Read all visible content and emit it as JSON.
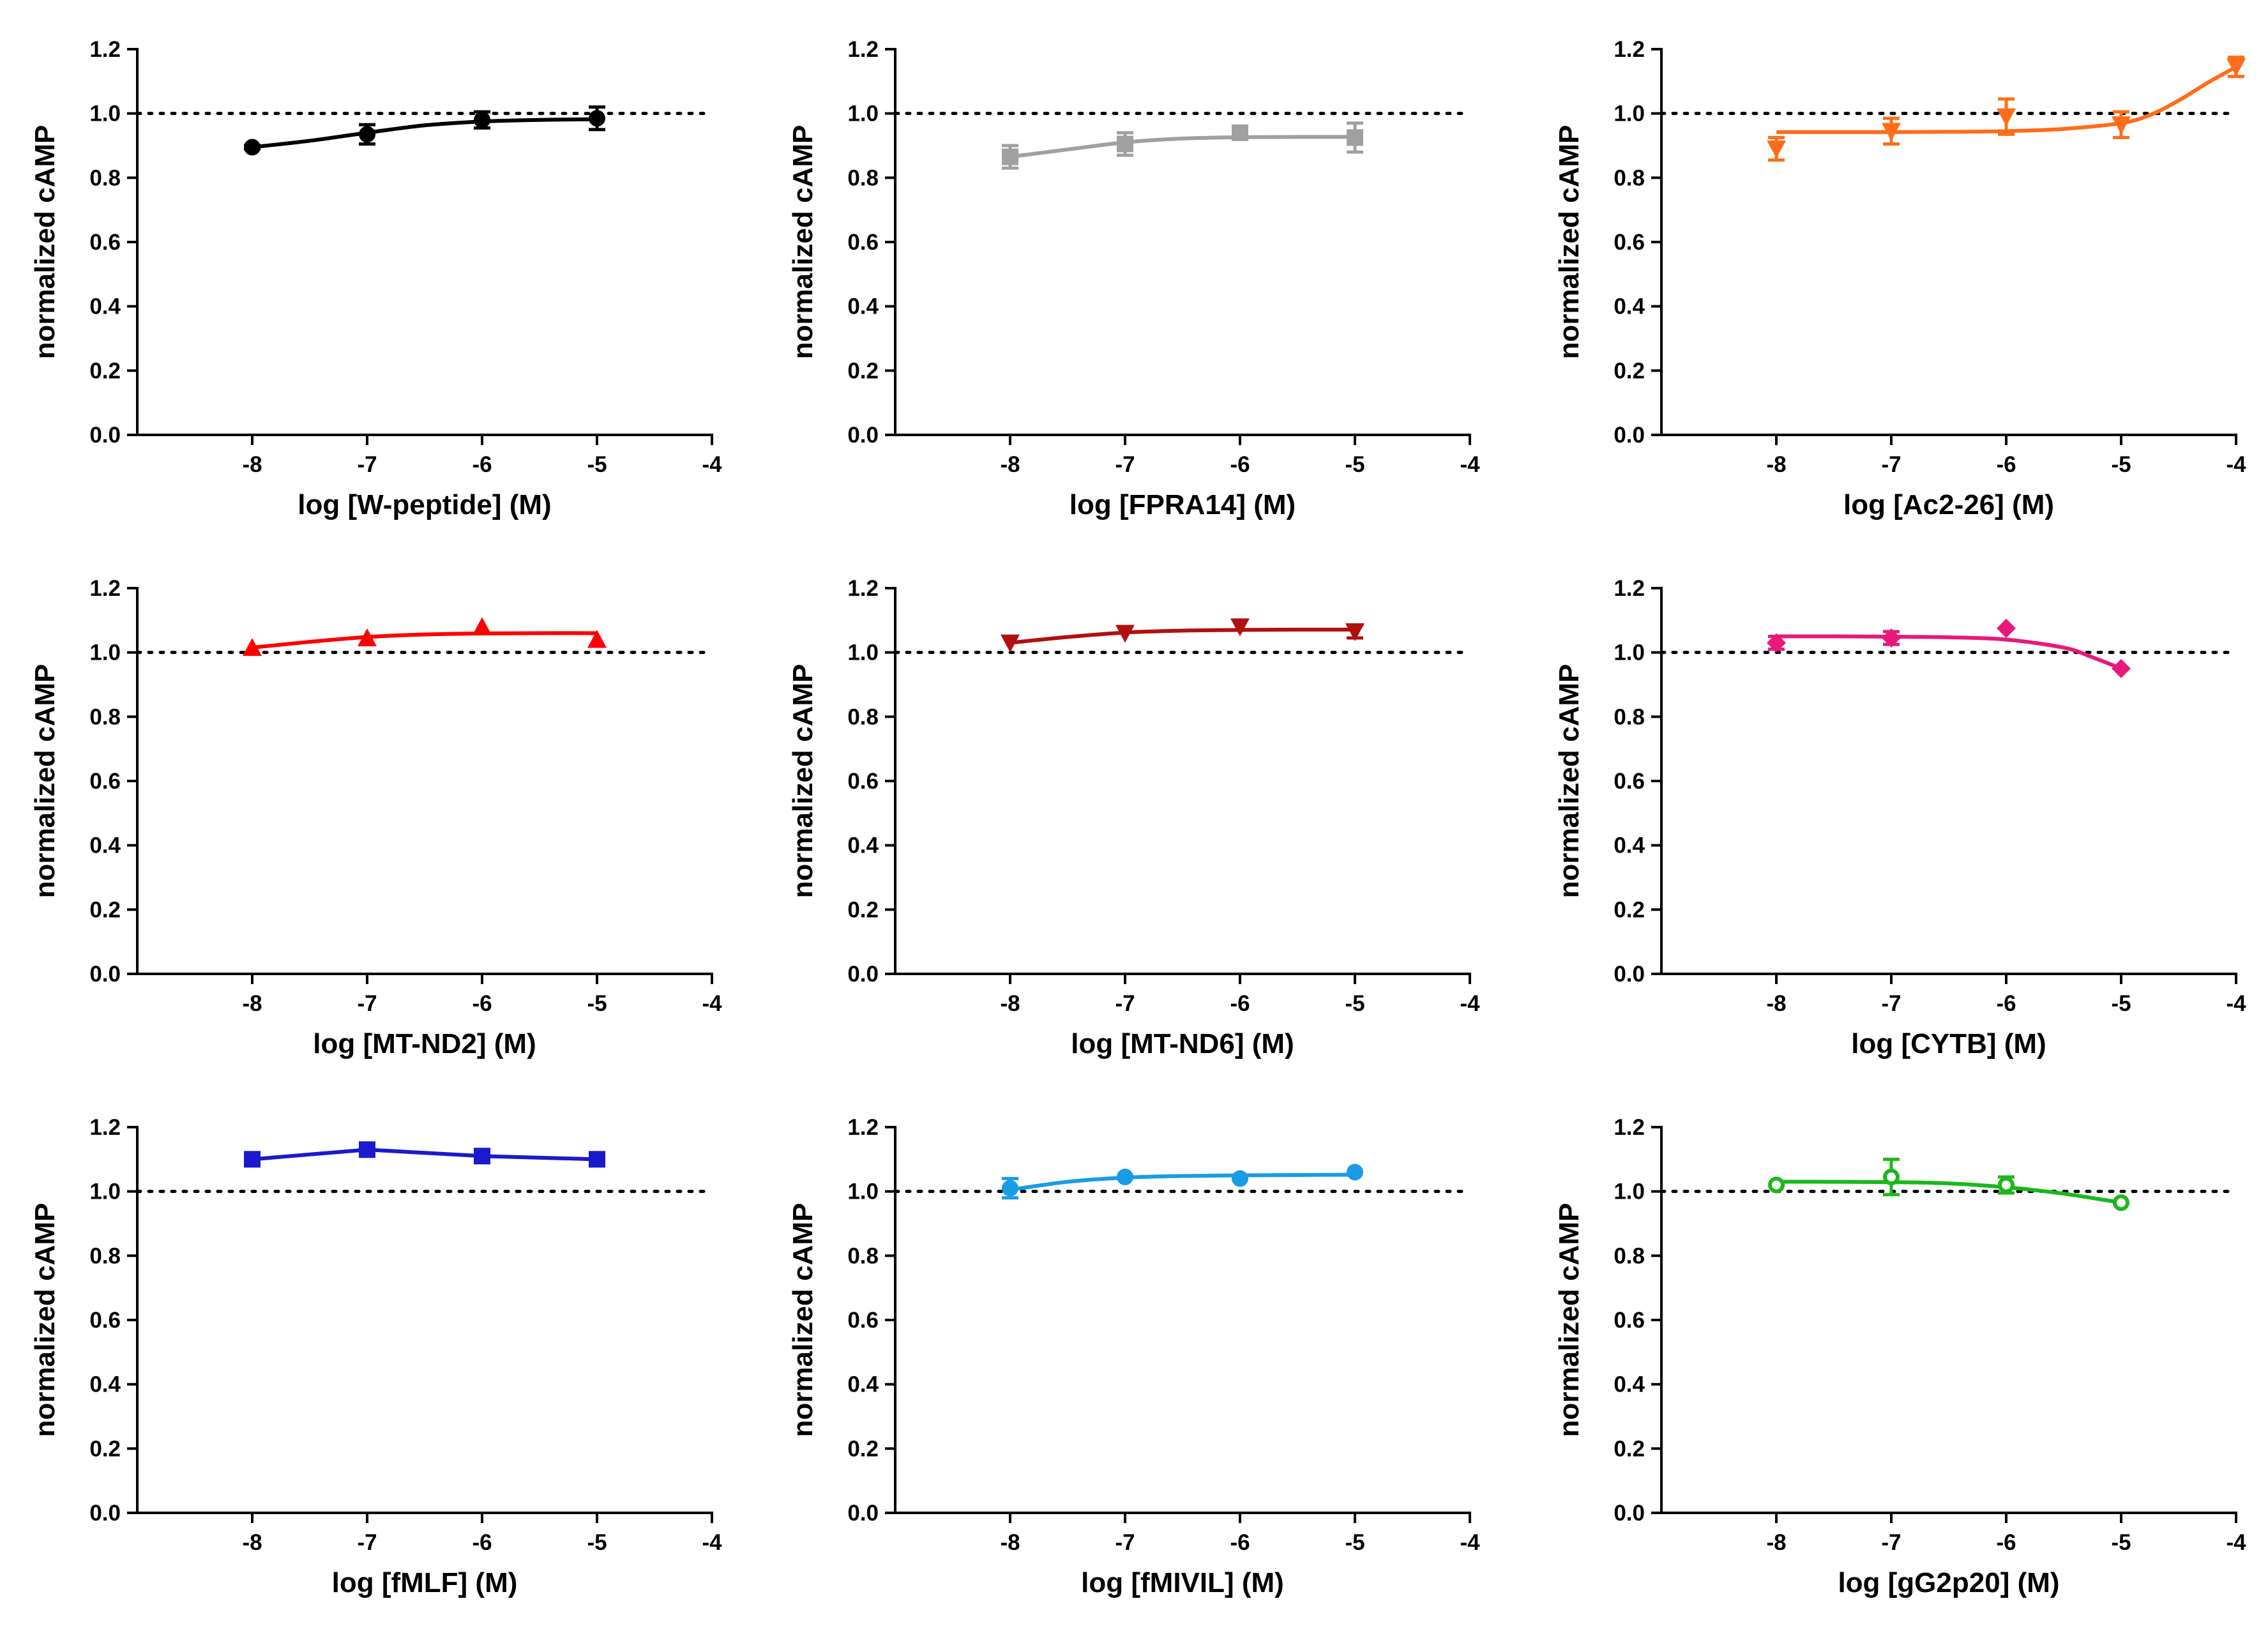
{
  "chart_data": [
    {
      "type": "scatter",
      "title": "",
      "xlabel": "log [W-peptide] (M)",
      "ylabel": "normalized cAMP",
      "xlim": [
        -9,
        -4
      ],
      "ylim": [
        0,
        1.2
      ],
      "xticks": [
        -8,
        -7,
        -6,
        -5,
        -4
      ],
      "yticks": [
        0.0,
        0.2,
        0.4,
        0.6,
        0.8,
        1.0,
        1.2
      ],
      "reference_line": 1.0,
      "marker": "circle",
      "color": "#000000",
      "fit": "sigmoidal",
      "x": [
        -8,
        -7,
        -6,
        -5
      ],
      "y": [
        0.895,
        0.935,
        0.98,
        0.985
      ],
      "error": [
        0.005,
        0.03,
        0.025,
        0.035
      ],
      "curve": [
        [
          -8,
          0.895
        ],
        [
          -7.5,
          0.915
        ],
        [
          -7,
          0.94
        ],
        [
          -6.5,
          0.963
        ],
        [
          -6,
          0.975
        ],
        [
          -5.5,
          0.98
        ],
        [
          -5,
          0.982
        ]
      ]
    },
    {
      "type": "scatter",
      "title": "",
      "xlabel": "log [FPRA14] (M)",
      "ylabel": "normalized cAMP",
      "xlim": [
        -9,
        -4
      ],
      "ylim": [
        0,
        1.2
      ],
      "xticks": [
        -8,
        -7,
        -6,
        -5,
        -4
      ],
      "yticks": [
        0.0,
        0.2,
        0.4,
        0.6,
        0.8,
        1.0,
        1.2
      ],
      "reference_line": 1.0,
      "marker": "square",
      "color": "#a0a0a0",
      "fit": "sigmoidal",
      "x": [
        -8,
        -7,
        -6,
        -5
      ],
      "y": [
        0.865,
        0.905,
        0.94,
        0.925
      ],
      "error": [
        0.035,
        0.035,
        0.01,
        0.045
      ],
      "curve": [
        [
          -8,
          0.865
        ],
        [
          -7.5,
          0.888
        ],
        [
          -7,
          0.91
        ],
        [
          -6.5,
          0.922
        ],
        [
          -6,
          0.926
        ],
        [
          -5.5,
          0.927
        ],
        [
          -5,
          0.927
        ]
      ]
    },
    {
      "type": "scatter",
      "title": "",
      "xlabel": "log [Ac2-26] (M)",
      "ylabel": "normalized cAMP",
      "xlim": [
        -9,
        -4
      ],
      "ylim": [
        0,
        1.2
      ],
      "xticks": [
        -8,
        -7,
        -6,
        -5,
        -4
      ],
      "yticks": [
        0.0,
        0.2,
        0.4,
        0.6,
        0.8,
        1.0,
        1.2
      ],
      "reference_line": 1.0,
      "marker": "triangle-down",
      "color": "#ff6d1a",
      "fit": "sigmoidal",
      "x": [
        -8,
        -7,
        -6,
        -5,
        -4
      ],
      "y": [
        0.89,
        0.945,
        0.99,
        0.965,
        1.145
      ],
      "error": [
        0.035,
        0.04,
        0.055,
        0.04,
        0.03
      ],
      "curve": [
        [
          -8,
          0.942
        ],
        [
          -7.5,
          0.942
        ],
        [
          -7,
          0.942
        ],
        [
          -6.5,
          0.943
        ],
        [
          -6,
          0.945
        ],
        [
          -5.5,
          0.952
        ],
        [
          -5,
          0.97
        ],
        [
          -4.75,
          0.995
        ],
        [
          -4.5,
          1.04
        ],
        [
          -4.25,
          1.095
        ],
        [
          -4,
          1.145
        ]
      ]
    },
    {
      "type": "scatter",
      "title": "",
      "xlabel": "log [MT-ND2] (M)",
      "ylabel": "normalized cAMP",
      "xlim": [
        -9,
        -4
      ],
      "ylim": [
        0,
        1.2
      ],
      "xticks": [
        -8,
        -7,
        -6,
        -5,
        -4
      ],
      "yticks": [
        0.0,
        0.2,
        0.4,
        0.6,
        0.8,
        1.0,
        1.2
      ],
      "reference_line": 1.0,
      "marker": "triangle-up",
      "color": "#ff0000",
      "fit": "sigmoidal",
      "x": [
        -8,
        -7,
        -6,
        -5
      ],
      "y": [
        1.015,
        1.045,
        1.08,
        1.04
      ],
      "error": [
        0,
        0,
        0,
        0
      ],
      "curve": [
        [
          -8,
          1.015
        ],
        [
          -7.5,
          1.033
        ],
        [
          -7,
          1.048
        ],
        [
          -6.5,
          1.056
        ],
        [
          -6,
          1.059
        ],
        [
          -5.5,
          1.06
        ],
        [
          -5,
          1.06
        ]
      ]
    },
    {
      "type": "scatter",
      "title": "",
      "xlabel": "log [MT-ND6] (M)",
      "ylabel": "normalized cAMP",
      "xlim": [
        -9,
        -4
      ],
      "ylim": [
        0,
        1.2
      ],
      "xticks": [
        -8,
        -7,
        -6,
        -5,
        -4
      ],
      "yticks": [
        0.0,
        0.2,
        0.4,
        0.6,
        0.8,
        1.0,
        1.2
      ],
      "reference_line": 1.0,
      "marker": "triangle-down",
      "color": "#b01010",
      "fit": "sigmoidal",
      "x": [
        -8,
        -7,
        -6,
        -5
      ],
      "y": [
        1.03,
        1.06,
        1.08,
        1.065
      ],
      "error": [
        0,
        0,
        0,
        0.02
      ],
      "curve": [
        [
          -8,
          1.03
        ],
        [
          -7.5,
          1.048
        ],
        [
          -7,
          1.062
        ],
        [
          -6.5,
          1.068
        ],
        [
          -6,
          1.07
        ],
        [
          -5.5,
          1.071
        ],
        [
          -5,
          1.071
        ]
      ]
    },
    {
      "type": "scatter",
      "title": "",
      "xlabel": "log [CYTB] (M)",
      "ylabel": "normalized cAMP",
      "xlim": [
        -9,
        -4
      ],
      "ylim": [
        0,
        1.2
      ],
      "xticks": [
        -8,
        -7,
        -6,
        -5,
        -4
      ],
      "yticks": [
        0.0,
        0.2,
        0.4,
        0.6,
        0.8,
        1.0,
        1.2
      ],
      "reference_line": 1.0,
      "marker": "diamond",
      "color": "#e8197a",
      "fit": "sigmoidal",
      "x": [
        -8,
        -7,
        -6,
        -5
      ],
      "y": [
        1.03,
        1.045,
        1.075,
        0.95
      ],
      "error": [
        0.02,
        0.02,
        0,
        0
      ],
      "curve": [
        [
          -8,
          1.05
        ],
        [
          -7.5,
          1.05
        ],
        [
          -7,
          1.049
        ],
        [
          -6.5,
          1.047
        ],
        [
          -6,
          1.04
        ],
        [
          -5.5,
          1.015
        ],
        [
          -5.25,
          0.985
        ],
        [
          -5,
          0.95
        ]
      ]
    },
    {
      "type": "line",
      "title": "",
      "xlabel": "log [fMLF] (M)",
      "ylabel": "normalized cAMP",
      "xlim": [
        -9,
        -4
      ],
      "ylim": [
        0,
        1.2
      ],
      "xticks": [
        -8,
        -7,
        -6,
        -5,
        -4
      ],
      "yticks": [
        0.0,
        0.2,
        0.4,
        0.6,
        0.8,
        1.0,
        1.2
      ],
      "reference_line": 1.0,
      "marker": "square",
      "color": "#1a1acc",
      "fit": "connect",
      "x": [
        -8,
        -7,
        -6,
        -5
      ],
      "y": [
        1.1,
        1.13,
        1.11,
        1.1
      ],
      "error": [
        0,
        0,
        0.015,
        0.02
      ],
      "curve": [
        [
          -8,
          1.1
        ],
        [
          -7,
          1.13
        ],
        [
          -6,
          1.11
        ],
        [
          -5,
          1.1
        ]
      ]
    },
    {
      "type": "scatter",
      "title": "",
      "xlabel": "log [fMIVIL] (M)",
      "ylabel": "normalized cAMP",
      "xlim": [
        -9,
        -4
      ],
      "ylim": [
        0,
        1.2
      ],
      "xticks": [
        -8,
        -7,
        -6,
        -5,
        -4
      ],
      "yticks": [
        0.0,
        0.2,
        0.4,
        0.6,
        0.8,
        1.0,
        1.2
      ],
      "reference_line": 1.0,
      "marker": "hexagon",
      "color": "#1a9be6",
      "fit": "sigmoidal",
      "x": [
        -8,
        -7,
        -6,
        -5
      ],
      "y": [
        1.01,
        1.045,
        1.04,
        1.06
      ],
      "error": [
        0.03,
        0,
        0,
        0
      ],
      "curve": [
        [
          -8,
          1.005
        ],
        [
          -7.5,
          1.03
        ],
        [
          -7,
          1.043
        ],
        [
          -6.5,
          1.048
        ],
        [
          -6,
          1.05
        ],
        [
          -5.5,
          1.051
        ],
        [
          -5,
          1.052
        ]
      ]
    },
    {
      "type": "scatter",
      "title": "",
      "xlabel": "log [gG2p20] (M)",
      "ylabel": "normalized cAMP",
      "xlim": [
        -9,
        -4
      ],
      "ylim": [
        0,
        1.2
      ],
      "xticks": [
        -8,
        -7,
        -6,
        -5,
        -4
      ],
      "yticks": [
        0.0,
        0.2,
        0.4,
        0.6,
        0.8,
        1.0,
        1.2
      ],
      "reference_line": 1.0,
      "marker": "circle-open",
      "color": "#1ab81a",
      "fit": "sigmoidal",
      "x": [
        -8,
        -7,
        -6,
        -5
      ],
      "y": [
        1.02,
        1.045,
        1.02,
        0.965
      ],
      "error": [
        0,
        0.055,
        0.025,
        0
      ],
      "curve": [
        [
          -8,
          1.03
        ],
        [
          -7.5,
          1.03
        ],
        [
          -7,
          1.029
        ],
        [
          -6.5,
          1.025
        ],
        [
          -6,
          1.013
        ],
        [
          -5.5,
          0.993
        ],
        [
          -5,
          0.965
        ]
      ]
    }
  ]
}
